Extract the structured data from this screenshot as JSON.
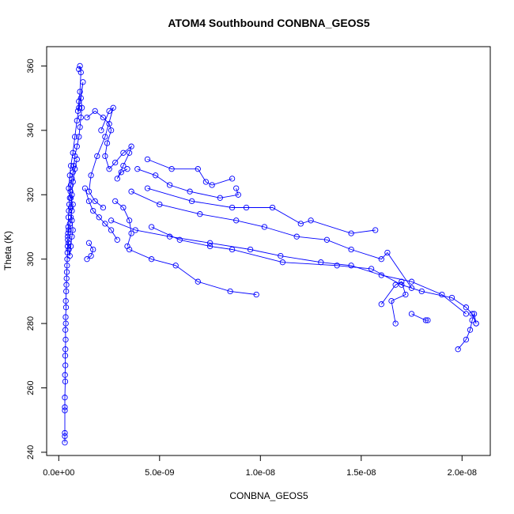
{
  "chart_data": {
    "type": "scatter",
    "title": "ATOM4 Southbound CONBNA_GEOS5",
    "xlabel": "CONBNA_GEOS5",
    "ylabel": "Theta (K)",
    "xlim": [
      -6e-10,
      2.14e-08
    ],
    "ylim": [
      239,
      366
    ],
    "x_ticks": [
      0,
      5e-09,
      1e-08,
      1.5e-08,
      2e-08
    ],
    "x_tick_labels": [
      "0.0e+00",
      "5.0e-09",
      "1.0e-08",
      "1.5e-08",
      "2.0e-08"
    ],
    "y_ticks": [
      240,
      260,
      280,
      300,
      320,
      340,
      360
    ],
    "y_tick_labels": [
      "240",
      "260",
      "280",
      "300",
      "320",
      "340",
      "360"
    ],
    "grid": false,
    "legend": "none",
    "color": "#0000ff",
    "marker": "open-circle",
    "connected": true,
    "series": [
      {
        "x": [
          3e-10,
          3e-10,
          3e-10,
          3e-10,
          3e-10,
          3e-10,
          3.2e-10,
          3.1e-10,
          3.3e-10,
          3.2e-10,
          3.3e-10,
          3.4e-10,
          3.3e-10,
          3.5e-10,
          3.4e-10,
          3.6e-10,
          3.5e-10,
          3.7e-10,
          3.8e-10,
          3.9e-10,
          4e-10,
          4.1e-10,
          4.2e-10,
          4.3e-10,
          4.4e-10,
          4.5e-10,
          4.6e-10,
          4.7e-10,
          4.8e-10,
          5e-10,
          5.2e-10,
          5.5e-10,
          5.8e-10,
          6e-10,
          6.5e-10,
          7e-10,
          7.5e-10,
          8e-10,
          9e-10,
          1e-09,
          1.05e-09,
          1.1e-09,
          1.15e-09,
          1.1e-09,
          1.2e-09,
          1e-09,
          9e-10,
          8e-10,
          7e-10,
          6e-10,
          5.5e-10,
          5e-10,
          6e-10,
          7e-10,
          6.5e-10,
          6e-10,
          5.5e-10,
          5e-10,
          4.5e-10,
          4.8e-10,
          5e-10,
          5.5e-10,
          6e-10,
          6.5e-10,
          7e-10,
          6.5e-10,
          6e-10,
          6.5e-10,
          7e-10,
          8e-10,
          9e-10
        ],
        "y": [
          243,
          245,
          246,
          253,
          254,
          257,
          262,
          264,
          267,
          270,
          272,
          275,
          278,
          280,
          282,
          285,
          287,
          290,
          292,
          294,
          296,
          298,
          300,
          302,
          304,
          306,
          308,
          310,
          313,
          315,
          317,
          319,
          321,
          323,
          325,
          327,
          329,
          332,
          335,
          338,
          341,
          344,
          347,
          350,
          355,
          347,
          343,
          338,
          333,
          329,
          326,
          322,
          319,
          317,
          315,
          313,
          311,
          309,
          307,
          305,
          303,
          301,
          304,
          307,
          309,
          312,
          316,
          320,
          324,
          328,
          331
        ]
      },
      {
        "x": [
          1e-09,
          1.05e-09,
          1.1e-09,
          1.05e-09,
          1e-09,
          9.5e-10
        ],
        "y": [
          359,
          360,
          358,
          352,
          349,
          346
        ]
      },
      {
        "x": [
          1.4e-09,
          1.8e-09,
          2.2e-09,
          2.5e-09,
          2.6e-09,
          2.4e-09,
          2.3e-09,
          2.5e-09,
          2.8e-09,
          3.2e-09,
          3.6e-09,
          3.5e-09,
          3.2e-09,
          2.9e-09,
          3.1e-09,
          3.4e-09
        ],
        "y": [
          344,
          346,
          344,
          342,
          340,
          336,
          332,
          328,
          330,
          333,
          335,
          333,
          329,
          325,
          327,
          328
        ]
      },
      {
        "x": [
          2.1e-09,
          2.5e-09,
          2.7e-09,
          2.3e-09,
          1.9e-09,
          1.6e-09,
          1.5e-09,
          1.8e-09,
          2.2e-09
        ],
        "y": [
          340,
          346,
          347,
          338,
          332,
          326,
          321,
          318,
          316
        ]
      },
      {
        "x": [
          1.3e-09,
          1.5e-09,
          1.7e-09,
          2e-09,
          2.3e-09,
          2.6e-09,
          2.9e-09
        ],
        "y": [
          322,
          318,
          315,
          313,
          311,
          309,
          306
        ]
      },
      {
        "x": [
          1.4e-09,
          1.6e-09,
          1.7e-09,
          1.5e-09
        ],
        "y": [
          300,
          301,
          303,
          305
        ]
      },
      {
        "x": [
          2.8e-09,
          3.2e-09,
          3.5e-09,
          3.6e-09,
          3.4e-09
        ],
        "y": [
          318,
          316,
          312,
          308,
          304
        ]
      },
      {
        "x": [
          4.4e-09,
          5.6e-09,
          6.9e-09,
          7.3e-09,
          7.6e-09,
          8.6e-09
        ],
        "y": [
          331,
          328,
          328,
          324,
          323,
          325
        ]
      },
      {
        "x": [
          3.9e-09,
          4.8e-09,
          5.5e-09,
          6.5e-09,
          8e-09,
          8.9e-09,
          8.8e-09
        ],
        "y": [
          328,
          326,
          323,
          321,
          319,
          320,
          322
        ]
      },
      {
        "x": [
          4.4e-09,
          6.6e-09,
          8.6e-09,
          9.3e-09,
          1.06e-08,
          1.2e-08,
          1.25e-08,
          1.45e-08,
          1.57e-08
        ],
        "y": [
          322,
          318,
          316,
          316,
          316,
          311,
          312,
          308,
          309
        ]
      },
      {
        "x": [
          3.6e-09,
          5e-09,
          7e-09,
          8.8e-09,
          1.02e-08,
          1.18e-08,
          1.33e-08,
          1.45e-08,
          1.6e-08,
          1.63e-08,
          1.75e-08
        ],
        "y": [
          321,
          317,
          314,
          312,
          310,
          307,
          306,
          303,
          300,
          302,
          291
        ]
      },
      {
        "x": [
          2.6e-09,
          3.8e-09,
          5.5e-09,
          7.5e-09,
          9.5e-09,
          1.1e-08,
          1.3e-08,
          1.45e-08,
          1.6e-08,
          1.75e-08,
          1.9e-08,
          2.02e-08
        ],
        "y": [
          312,
          309,
          307,
          305,
          303,
          301,
          299,
          298,
          295,
          293,
          289,
          283
        ]
      },
      {
        "x": [
          3.5e-09,
          4.6e-09,
          5.8e-09,
          6.9e-09,
          8.5e-09,
          9.8e-09
        ],
        "y": [
          303,
          300,
          298,
          293,
          290,
          289
        ]
      },
      {
        "x": [
          4.6e-09,
          6e-09,
          7.5e-09,
          8.6e-09,
          1.11e-08,
          1.38e-08,
          1.55e-08,
          1.7e-08,
          1.8e-08,
          1.95e-08,
          2.02e-08,
          2.05e-08,
          2.07e-08
        ],
        "y": [
          310,
          306,
          304,
          303,
          299,
          298,
          297,
          292,
          290,
          288,
          285,
          283,
          280
        ]
      },
      {
        "x": [
          1.6e-08,
          1.67e-08,
          1.7e-08,
          1.72e-08,
          1.65e-08,
          1.67e-08
        ],
        "y": [
          286,
          292,
          293,
          289,
          287,
          280
        ]
      },
      {
        "x": [
          1.75e-08,
          1.82e-08,
          1.83e-08
        ],
        "y": [
          283,
          281,
          281
        ]
      },
      {
        "x": [
          1.98e-08,
          2.02e-08,
          2.04e-08,
          2.05e-08,
          2.06e-08,
          2.07e-08
        ],
        "y": [
          272,
          275,
          278,
          281,
          283,
          280
        ]
      }
    ]
  }
}
